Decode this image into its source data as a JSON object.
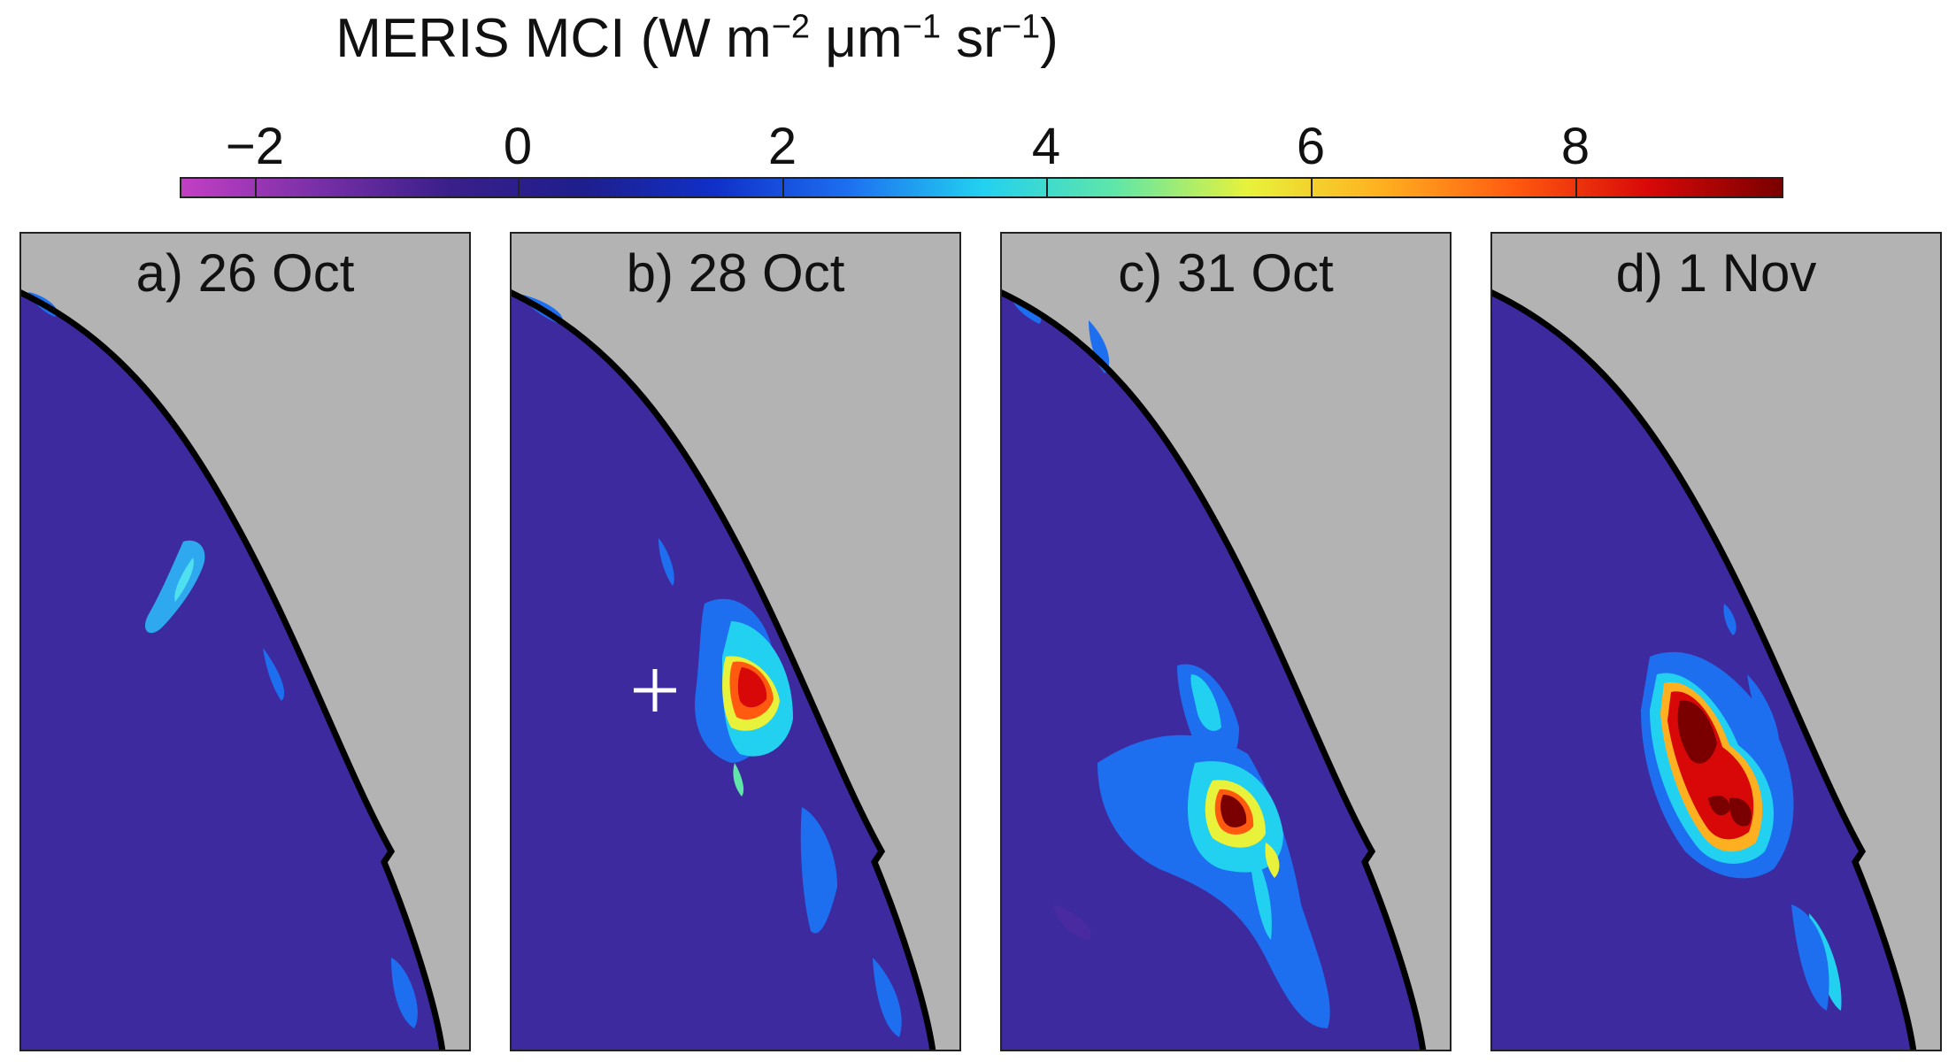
{
  "title": {
    "main": "MERIS MCI (W m",
    "exp1": "−2",
    "mid1": " μm",
    "exp2": "−1",
    "mid2": " sr",
    "exp3": "−1",
    "end": ")"
  },
  "colorbar": {
    "ticks": [
      "−2",
      "0",
      "2",
      "4",
      "6",
      "8"
    ],
    "tick_values": [
      -2,
      0,
      2,
      4,
      6,
      8
    ],
    "range": [
      -2.8,
      9.4
    ],
    "stops": [
      "#c33fc4",
      "#7a2fa8",
      "#3a1f8a",
      "#1e1e8c",
      "#1030c8",
      "#1d6ff0",
      "#22d0f0",
      "#5fe6a8",
      "#e8f23a",
      "#ffb020",
      "#ff5a10",
      "#d80808",
      "#7a0000"
    ]
  },
  "map": {
    "land_color": "#b3b3b3",
    "water_color": "#3c2a9e",
    "coast_color": "#000000"
  },
  "panels": [
    {
      "label": "a) 26 Oct"
    },
    {
      "label": "b) 28 Oct"
    },
    {
      "label": "c) 31 Oct"
    },
    {
      "label": "d) 1 Nov"
    }
  ]
}
